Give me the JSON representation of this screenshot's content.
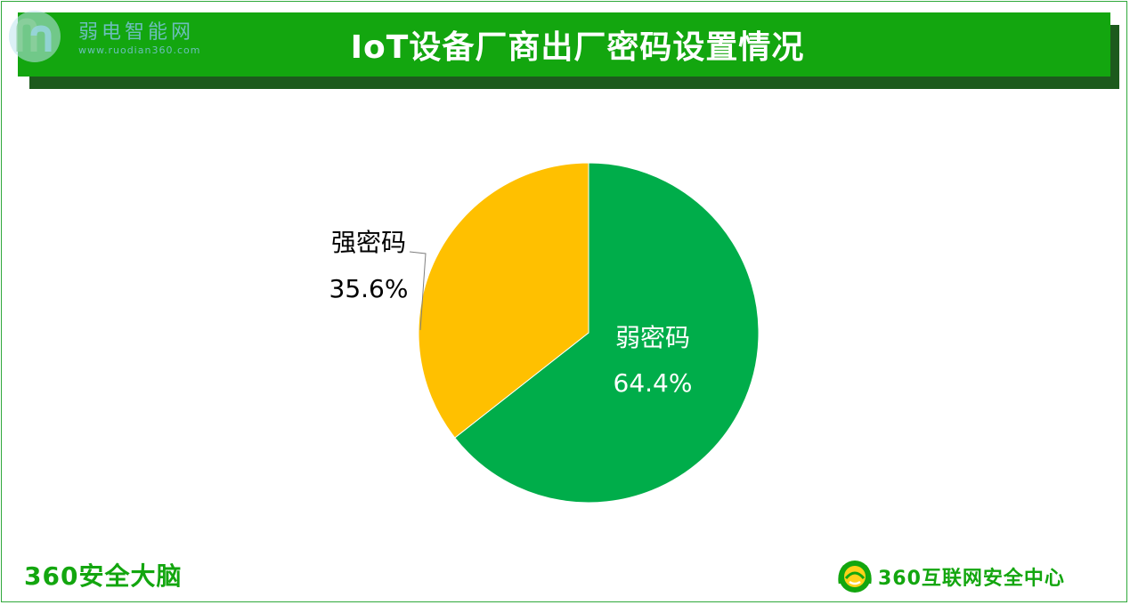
{
  "header": {
    "title": "IoT设备厂商出厂密码设置情况"
  },
  "watermark": {
    "name": "弱电智能网",
    "url": "www.ruodian360.com"
  },
  "footer": {
    "left_brand": "360安全大脑",
    "right_brand": "360互联网安全中心"
  },
  "colors": {
    "banner": "#13a60f",
    "weak": "#00ad4a",
    "strong": "#ffc000",
    "brand_text": "#13a60f"
  },
  "icons": {
    "watermark_logo": "rd-leaf-logo-icon",
    "footer_logo": "360-shield-logo-icon"
  },
  "chart_data": {
    "type": "pie",
    "title": "IoT设备厂商出厂密码设置情况",
    "slices": [
      {
        "label": "弱密码",
        "value": 64.4,
        "value_label": "64.4%",
        "color": "#00ad4a"
      },
      {
        "label": "强密码",
        "value": 35.6,
        "value_label": "35.6%",
        "color": "#ffc000"
      }
    ],
    "start_angle": "12 o'clock",
    "direction": "clockwise",
    "legend": "none",
    "data_labels": "category and percentage"
  }
}
